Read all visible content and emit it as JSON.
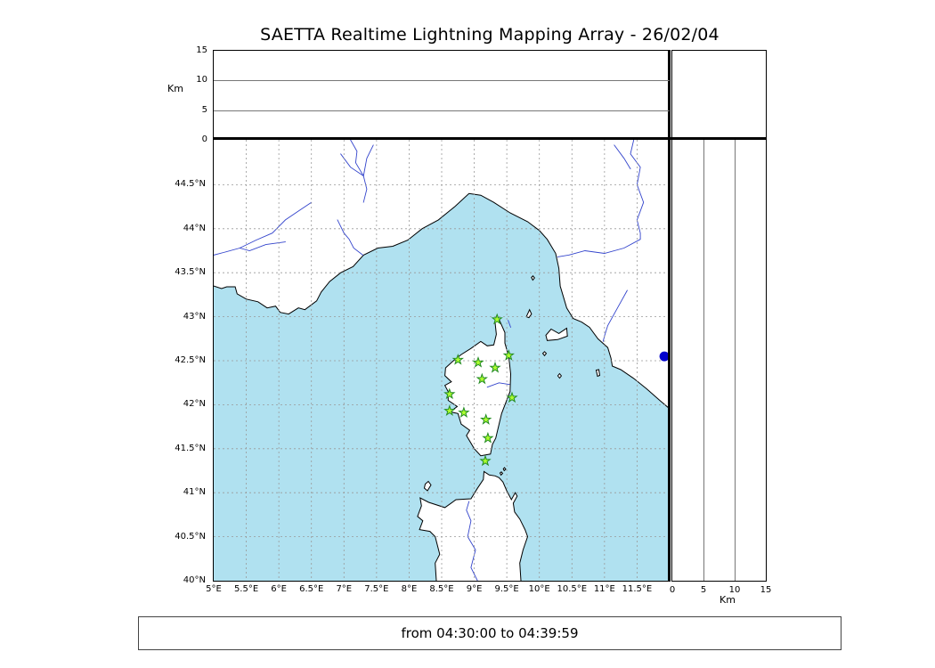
{
  "title": "SAETTA Realtime Lightning Mapping Array - 26/02/04",
  "footer": {
    "time_range": "from 04:30:00 to 04:39:59"
  },
  "colors": {
    "sea": "#b0e1f0",
    "land": "#ffffff",
    "coastline": "#000000",
    "river": "#3344cc",
    "grid": "#999999",
    "station_fill": "#adff2f",
    "station_edge": "#228b22",
    "event_dot": "#0000cc"
  },
  "altitude_axis": {
    "unit": "Km",
    "max": 15,
    "ticks": [
      {
        "label": "0",
        "value": 0
      },
      {
        "label": "5",
        "value": 5
      },
      {
        "label": "10",
        "value": 10
      },
      {
        "label": "15",
        "value": 15
      }
    ]
  },
  "map_extent": {
    "lon_min": 5,
    "lon_max": 12.0,
    "lat_min": 40,
    "lat_max": 45.01
  },
  "map_axes": {
    "lat_ticks": [
      {
        "label": "40°N",
        "value": 40
      },
      {
        "label": "40.5°N",
        "value": 40.5
      },
      {
        "label": "41°N",
        "value": 41
      },
      {
        "label": "41.5°N",
        "value": 41.5
      },
      {
        "label": "42°N",
        "value": 42
      },
      {
        "label": "42.5°N",
        "value": 42.5
      },
      {
        "label": "43°N",
        "value": 43
      },
      {
        "label": "43.5°N",
        "value": 43.5
      },
      {
        "label": "44°N",
        "value": 44
      },
      {
        "label": "44.5°N",
        "value": 44.5
      }
    ],
    "lon_ticks": [
      {
        "label": "5°E",
        "value": 5
      },
      {
        "label": "5.5°E",
        "value": 5.5
      },
      {
        "label": "6°E",
        "value": 6
      },
      {
        "label": "6.5°E",
        "value": 6.5
      },
      {
        "label": "7°E",
        "value": 7
      },
      {
        "label": "7.5°E",
        "value": 7.5
      },
      {
        "label": "8°E",
        "value": 8
      },
      {
        "label": "8.5°E",
        "value": 8.5
      },
      {
        "label": "9°E",
        "value": 9
      },
      {
        "label": "9.5°E",
        "value": 9.5
      },
      {
        "label": "10°E",
        "value": 10
      },
      {
        "label": "10.5°E",
        "value": 10.5
      },
      {
        "label": "11°E",
        "value": 11
      },
      {
        "label": "11.5°E",
        "value": 11.5
      }
    ]
  },
  "stations": [
    {
      "lon": 9.35,
      "lat": 42.97
    },
    {
      "lon": 8.75,
      "lat": 42.51
    },
    {
      "lon": 9.06,
      "lat": 42.48
    },
    {
      "lon": 9.32,
      "lat": 42.42
    },
    {
      "lon": 9.53,
      "lat": 42.56
    },
    {
      "lon": 9.12,
      "lat": 42.29
    },
    {
      "lon": 8.62,
      "lat": 42.12
    },
    {
      "lon": 9.58,
      "lat": 42.08
    },
    {
      "lon": 8.62,
      "lat": 41.93
    },
    {
      "lon": 8.84,
      "lat": 41.91
    },
    {
      "lon": 9.18,
      "lat": 41.83
    },
    {
      "lon": 9.21,
      "lat": 41.62
    },
    {
      "lon": 9.17,
      "lat": 41.36
    }
  ],
  "event_dot": {
    "lon": 11.92,
    "lat": 42.55
  }
}
